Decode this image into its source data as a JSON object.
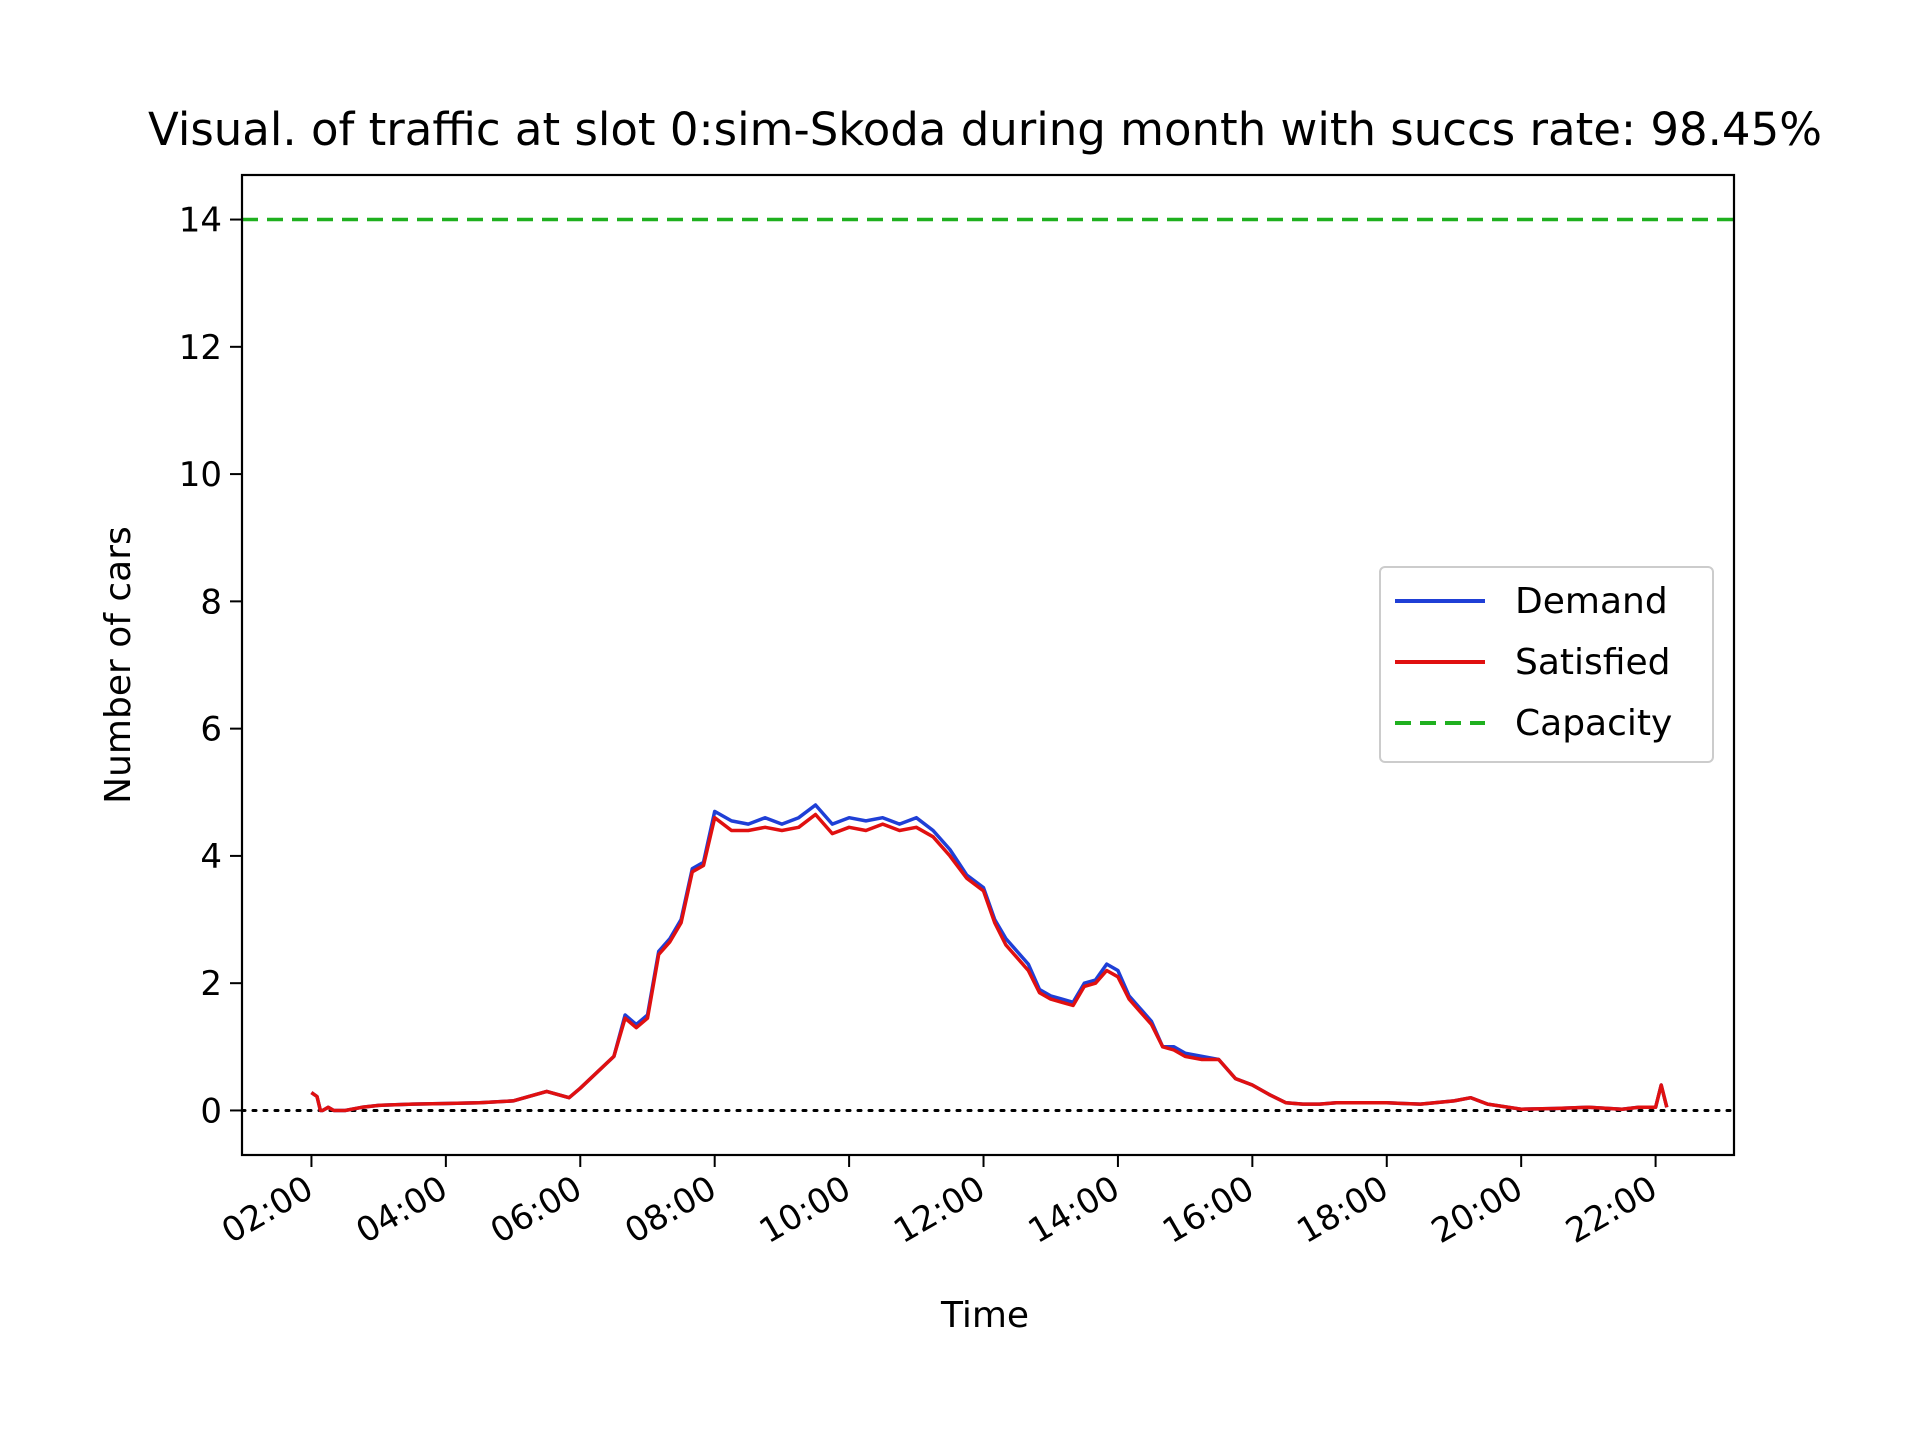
{
  "chart_data": {
    "type": "line",
    "title": "Visual. of traffic at slot 0:sim-Skoda during month with succs rate: 98.45%",
    "xlabel": "Time",
    "ylabel": "Number of cars",
    "x_ticks": [
      "02:00",
      "04:00",
      "06:00",
      "08:00",
      "10:00",
      "12:00",
      "14:00",
      "16:00",
      "18:00",
      "20:00",
      "22:00"
    ],
    "y_ticks": [
      "0",
      "2",
      "4",
      "6",
      "8",
      "10",
      "12",
      "14"
    ],
    "xlim": [
      "00:58",
      "23:10"
    ],
    "ylim": [
      -0.7,
      14.7
    ],
    "grid": false,
    "legend_position": "center-right",
    "colors": {
      "demand": "#1f3fd6",
      "satisfied": "#e01010",
      "capacity": "#1fb01f",
      "zero_line": "#000000"
    },
    "series": [
      {
        "name": "Demand",
        "x": [
          "02:00",
          "02:05",
          "02:08",
          "02:10",
          "02:15",
          "02:20",
          "02:30",
          "02:45",
          "03:00",
          "03:30",
          "04:00",
          "04:30",
          "05:00",
          "05:30",
          "05:50",
          "06:00",
          "06:30",
          "06:40",
          "06:50",
          "07:00",
          "07:10",
          "07:20",
          "07:30",
          "07:40",
          "07:50",
          "08:00",
          "08:15",
          "08:30",
          "08:45",
          "09:00",
          "09:15",
          "09:30",
          "09:45",
          "10:00",
          "10:15",
          "10:30",
          "10:45",
          "11:00",
          "11:15",
          "11:30",
          "11:45",
          "12:00",
          "12:10",
          "12:20",
          "12:30",
          "12:40",
          "12:50",
          "13:00",
          "13:10",
          "13:20",
          "13:30",
          "13:40",
          "13:50",
          "14:00",
          "14:10",
          "14:20",
          "14:30",
          "14:40",
          "14:50",
          "15:00",
          "15:15",
          "15:30",
          "15:45",
          "16:00",
          "16:15",
          "16:30",
          "16:45",
          "17:00",
          "17:15",
          "17:30",
          "17:45",
          "18:00",
          "18:30",
          "19:00",
          "19:15",
          "19:30",
          "20:00",
          "20:30",
          "21:00",
          "21:30",
          "21:45",
          "22:00",
          "22:05",
          "22:10"
        ],
        "y": [
          0.28,
          0.22,
          0.0,
          0.0,
          0.05,
          0.0,
          0.0,
          0.05,
          0.08,
          0.1,
          0.11,
          0.12,
          0.15,
          0.3,
          0.2,
          0.35,
          0.85,
          1.5,
          1.35,
          1.5,
          2.5,
          2.7,
          3.0,
          3.8,
          3.9,
          4.7,
          4.55,
          4.5,
          4.6,
          4.5,
          4.6,
          4.8,
          4.5,
          4.6,
          4.55,
          4.6,
          4.5,
          4.6,
          4.4,
          4.1,
          3.7,
          3.5,
          3.0,
          2.7,
          2.5,
          2.3,
          1.9,
          1.8,
          1.75,
          1.7,
          2.0,
          2.05,
          2.3,
          2.2,
          1.8,
          1.6,
          1.4,
          1.0,
          1.0,
          0.9,
          0.85,
          0.8,
          0.5,
          0.4,
          0.25,
          0.12,
          0.1,
          0.1,
          0.12,
          0.12,
          0.12,
          0.12,
          0.1,
          0.15,
          0.2,
          0.1,
          0.02,
          0.03,
          0.05,
          0.02,
          0.05,
          0.05,
          0.4,
          0.05
        ]
      },
      {
        "name": "Satisfied",
        "x": [
          "02:00",
          "02:05",
          "02:08",
          "02:10",
          "02:15",
          "02:20",
          "02:30",
          "02:45",
          "03:00",
          "03:30",
          "04:00",
          "04:30",
          "05:00",
          "05:30",
          "05:50",
          "06:00",
          "06:30",
          "06:40",
          "06:50",
          "07:00",
          "07:10",
          "07:20",
          "07:30",
          "07:40",
          "07:50",
          "08:00",
          "08:15",
          "08:30",
          "08:45",
          "09:00",
          "09:15",
          "09:30",
          "09:45",
          "10:00",
          "10:15",
          "10:30",
          "10:45",
          "11:00",
          "11:15",
          "11:30",
          "11:45",
          "12:00",
          "12:10",
          "12:20",
          "12:30",
          "12:40",
          "12:50",
          "13:00",
          "13:10",
          "13:20",
          "13:30",
          "13:40",
          "13:50",
          "14:00",
          "14:10",
          "14:20",
          "14:30",
          "14:40",
          "14:50",
          "15:00",
          "15:15",
          "15:30",
          "15:45",
          "16:00",
          "16:15",
          "16:30",
          "16:45",
          "17:00",
          "17:15",
          "17:30",
          "17:45",
          "18:00",
          "18:30",
          "19:00",
          "19:15",
          "19:30",
          "20:00",
          "20:30",
          "21:00",
          "21:30",
          "21:45",
          "22:00",
          "22:05",
          "22:10"
        ],
        "y": [
          0.28,
          0.22,
          0.0,
          0.0,
          0.05,
          0.0,
          0.0,
          0.05,
          0.08,
          0.1,
          0.11,
          0.12,
          0.15,
          0.3,
          0.2,
          0.35,
          0.85,
          1.45,
          1.3,
          1.45,
          2.45,
          2.65,
          2.95,
          3.75,
          3.85,
          4.6,
          4.4,
          4.4,
          4.45,
          4.4,
          4.45,
          4.65,
          4.35,
          4.45,
          4.4,
          4.5,
          4.4,
          4.45,
          4.3,
          4.0,
          3.65,
          3.45,
          2.95,
          2.6,
          2.4,
          2.2,
          1.85,
          1.75,
          1.7,
          1.65,
          1.95,
          2.0,
          2.2,
          2.1,
          1.75,
          1.55,
          1.35,
          1.0,
          0.95,
          0.85,
          0.8,
          0.8,
          0.5,
          0.4,
          0.25,
          0.12,
          0.1,
          0.1,
          0.12,
          0.12,
          0.12,
          0.12,
          0.1,
          0.15,
          0.2,
          0.1,
          0.02,
          0.03,
          0.05,
          0.02,
          0.05,
          0.05,
          0.4,
          0.05
        ]
      },
      {
        "name": "Capacity",
        "x": [
          "00:58",
          "23:10"
        ],
        "y": [
          14,
          14
        ]
      }
    ]
  }
}
